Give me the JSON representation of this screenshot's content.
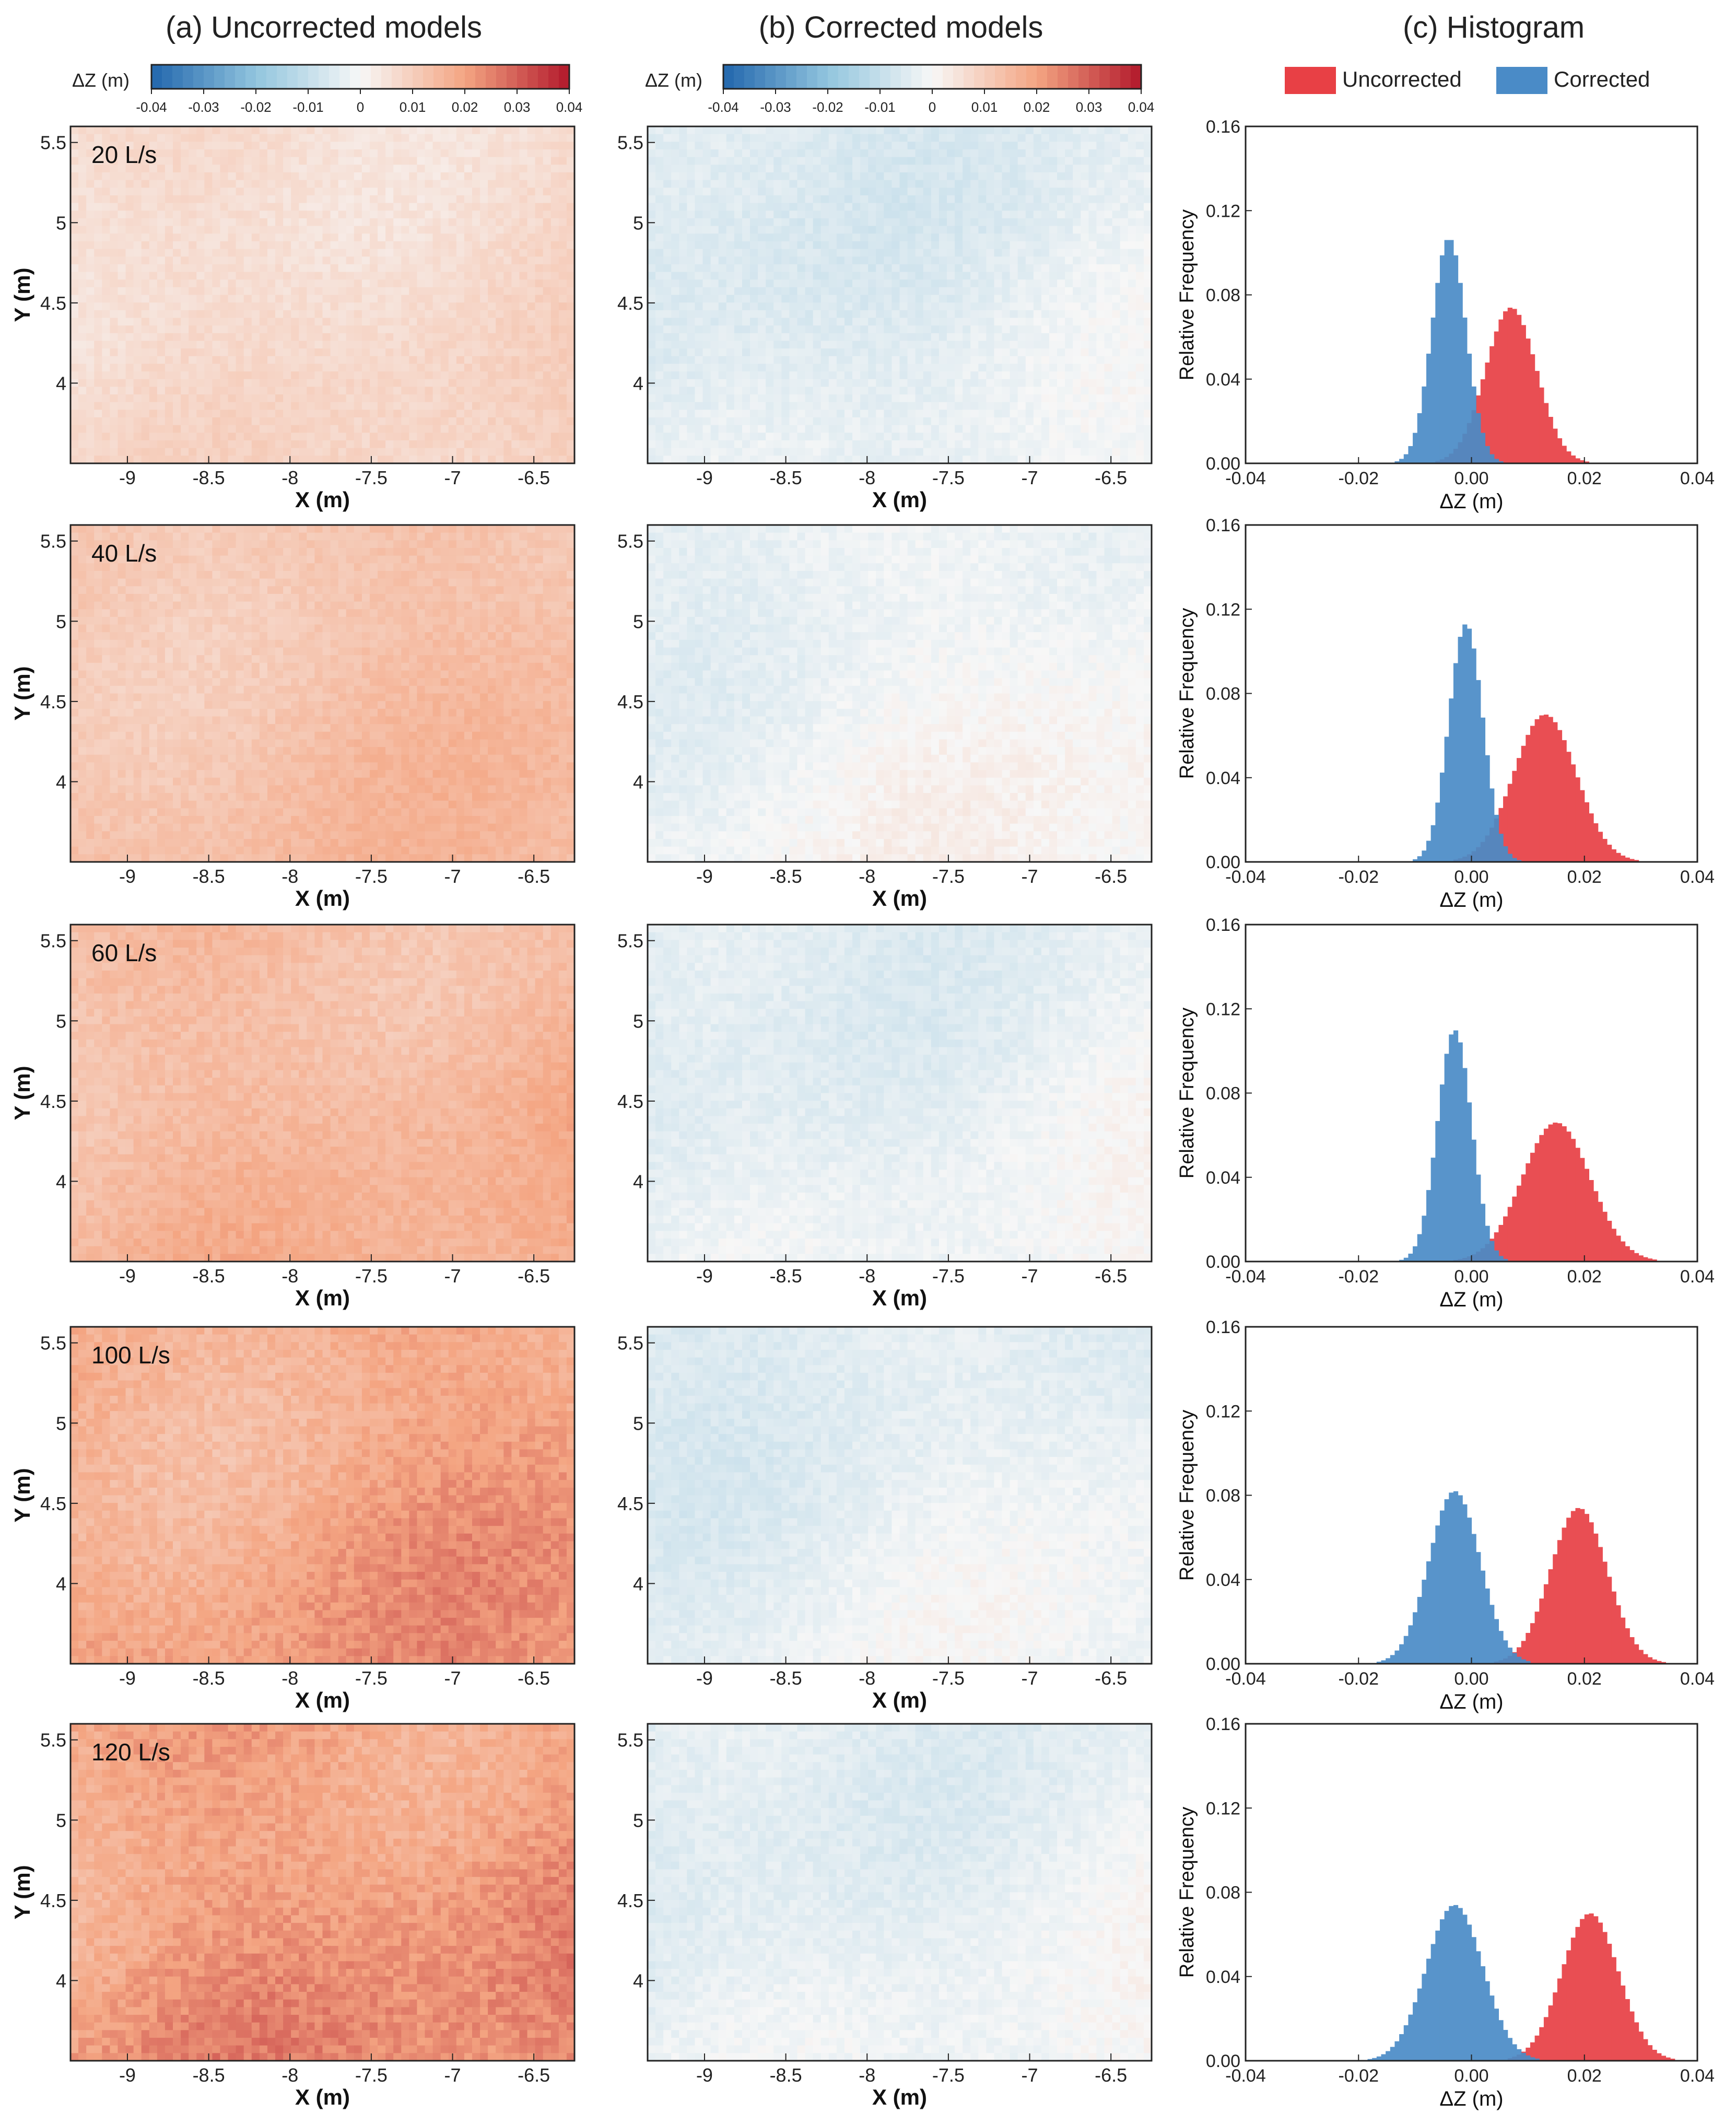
{
  "figure": {
    "column_titles": [
      "(a) Uncorrected models",
      "(b) Corrected models",
      "(c) Histogram"
    ],
    "colorbar": {
      "label": "ΔZ (m)",
      "tick_labels": [
        "-0.04",
        "-0.03",
        "-0.02",
        "-0.01",
        "0",
        "0.01",
        "0.02",
        "0.03",
        "0.04"
      ],
      "range": [
        -0.04,
        0.04
      ]
    },
    "legend": [
      {
        "label": "Uncorrected",
        "color": "#e84045"
      },
      {
        "label": "Corrected",
        "color": "#4a8bc7"
      }
    ]
  },
  "chart_data": [
    {
      "type": "heatmap",
      "panel": "a",
      "row": 1,
      "flow_label": "20 L/s",
      "xlabel": "X (m)",
      "ylabel": "Y (m)",
      "xlim": [
        -9.35,
        -6.25
      ],
      "ylim": [
        3.5,
        5.6
      ],
      "xticks": [
        "-9",
        "-8.5",
        "-8",
        "-7.5",
        "-7",
        "-6.5"
      ],
      "yticks": [
        "4",
        "4.5",
        "5",
        "5.5"
      ],
      "mean_dz": 0.007,
      "colorbar_range": [
        -0.04,
        0.04
      ]
    },
    {
      "type": "heatmap",
      "panel": "b",
      "row": 1,
      "xlabel": "X (m)",
      "ylabel": "",
      "xlim": [
        -9.35,
        -6.25
      ],
      "ylim": [
        3.5,
        5.6
      ],
      "xticks": [
        "-9",
        "-8.5",
        "-8",
        "-7.5",
        "-7",
        "-6.5"
      ],
      "yticks": [
        "4",
        "4.5",
        "5",
        "5.5"
      ],
      "mean_dz": -0.004,
      "colorbar_range": [
        -0.04,
        0.04
      ]
    },
    {
      "type": "bar",
      "panel": "c",
      "row": 1,
      "xlabel": "ΔZ (m)",
      "ylabel": "Relative Frequency",
      "xlim": [
        -0.04,
        0.04
      ],
      "ylim": [
        0,
        0.16
      ],
      "xticks": [
        "-0.04",
        "-0.02",
        "0.00",
        "0.02",
        "0.04"
      ],
      "yticks": [
        "0.00",
        "0.04",
        "0.08",
        "0.12",
        "0.16"
      ],
      "series": [
        {
          "name": "Uncorrected",
          "mean": 0.007,
          "std": 0.0045,
          "peak": 0.074
        },
        {
          "name": "Corrected",
          "mean": -0.004,
          "std": 0.003,
          "peak": 0.107
        }
      ]
    },
    {
      "type": "heatmap",
      "panel": "a",
      "row": 2,
      "flow_label": "40 L/s",
      "xlabel": "X (m)",
      "ylabel": "Y (m)",
      "xlim": [
        -9.35,
        -6.25
      ],
      "ylim": [
        3.5,
        5.6
      ],
      "xticks": [
        "-9",
        "-8.5",
        "-8",
        "-7.5",
        "-7",
        "-6.5"
      ],
      "yticks": [
        "4",
        "4.5",
        "5",
        "5.5"
      ],
      "mean_dz": 0.013,
      "colorbar_range": [
        -0.04,
        0.04
      ]
    },
    {
      "type": "heatmap",
      "panel": "b",
      "row": 2,
      "xlabel": "X (m)",
      "ylabel": "",
      "xlim": [
        -9.35,
        -6.25
      ],
      "ylim": [
        3.5,
        5.6
      ],
      "xticks": [
        "-9",
        "-8.5",
        "-8",
        "-7.5",
        "-7",
        "-6.5"
      ],
      "yticks": [
        "4",
        "4.5",
        "5",
        "5.5"
      ],
      "mean_dz": -0.001,
      "colorbar_range": [
        -0.04,
        0.04
      ]
    },
    {
      "type": "bar",
      "panel": "c",
      "row": 2,
      "xlabel": "ΔZ (m)",
      "ylabel": "Relative Frequency",
      "xlim": [
        -0.04,
        0.04
      ],
      "ylim": [
        0,
        0.16
      ],
      "xticks": [
        "-0.04",
        "-0.02",
        "0.00",
        "0.02",
        "0.04"
      ],
      "yticks": [
        "0.00",
        "0.04",
        "0.08",
        "0.12",
        "0.16"
      ],
      "series": [
        {
          "name": "Uncorrected",
          "mean": 0.013,
          "std": 0.0055,
          "peak": 0.07
        },
        {
          "name": "Corrected",
          "mean": -0.001,
          "std": 0.003,
          "peak": 0.113
        }
      ]
    },
    {
      "type": "heatmap",
      "panel": "a",
      "row": 3,
      "flow_label": "60 L/s",
      "xlabel": "X (m)",
      "ylabel": "Y (m)",
      "xlim": [
        -9.35,
        -6.25
      ],
      "ylim": [
        3.5,
        5.6
      ],
      "xticks": [
        "-9",
        "-8.5",
        "-8",
        "-7.5",
        "-7",
        "-6.5"
      ],
      "yticks": [
        "4",
        "4.5",
        "5",
        "5.5"
      ],
      "mean_dz": 0.015,
      "colorbar_range": [
        -0.04,
        0.04
      ]
    },
    {
      "type": "heatmap",
      "panel": "b",
      "row": 3,
      "xlabel": "X (m)",
      "ylabel": "",
      "xlim": [
        -9.35,
        -6.25
      ],
      "ylim": [
        3.5,
        5.6
      ],
      "xticks": [
        "-9",
        "-8.5",
        "-8",
        "-7.5",
        "-7",
        "-6.5"
      ],
      "yticks": [
        "4",
        "4.5",
        "5",
        "5.5"
      ],
      "mean_dz": -0.003,
      "colorbar_range": [
        -0.04,
        0.04
      ]
    },
    {
      "type": "bar",
      "panel": "c",
      "row": 3,
      "xlabel": "ΔZ (m)",
      "ylabel": "Relative Frequency",
      "xlim": [
        -0.04,
        0.04
      ],
      "ylim": [
        0,
        0.16
      ],
      "xticks": [
        "-0.04",
        "-0.02",
        "0.00",
        "0.02",
        "0.04"
      ],
      "yticks": [
        "0.00",
        "0.04",
        "0.08",
        "0.12",
        "0.16"
      ],
      "series": [
        {
          "name": "Uncorrected",
          "mean": 0.015,
          "std": 0.006,
          "peak": 0.066
        },
        {
          "name": "Corrected",
          "mean": -0.003,
          "std": 0.003,
          "peak": 0.11
        }
      ]
    },
    {
      "type": "heatmap",
      "panel": "a",
      "row": 4,
      "flow_label": "100 L/s",
      "xlabel": "X (m)",
      "ylabel": "Y (m)",
      "xlim": [
        -9.35,
        -6.25
      ],
      "ylim": [
        3.5,
        5.6
      ],
      "xticks": [
        "-9",
        "-8.5",
        "-8",
        "-7.5",
        "-7",
        "-6.5"
      ],
      "yticks": [
        "4",
        "4.5",
        "5",
        "5.5"
      ],
      "mean_dz": 0.019,
      "colorbar_range": [
        -0.04,
        0.04
      ]
    },
    {
      "type": "heatmap",
      "panel": "b",
      "row": 4,
      "xlabel": "X (m)",
      "ylabel": "",
      "xlim": [
        -9.35,
        -6.25
      ],
      "ylim": [
        3.5,
        5.6
      ],
      "xticks": [
        "-9",
        "-8.5",
        "-8",
        "-7.5",
        "-7",
        "-6.5"
      ],
      "yticks": [
        "4",
        "4.5",
        "5",
        "5.5"
      ],
      "mean_dz": -0.003,
      "colorbar_range": [
        -0.04,
        0.04
      ]
    },
    {
      "type": "bar",
      "panel": "c",
      "row": 4,
      "xlabel": "ΔZ (m)",
      "ylabel": "Relative Frequency",
      "xlim": [
        -0.04,
        0.04
      ],
      "ylim": [
        0,
        0.16
      ],
      "xticks": [
        "-0.04",
        "-0.02",
        "0.00",
        "0.02",
        "0.04"
      ],
      "yticks": [
        "0.00",
        "0.04",
        "0.08",
        "0.12",
        "0.16"
      ],
      "series": [
        {
          "name": "Uncorrected",
          "mean": 0.019,
          "std": 0.005,
          "peak": 0.074
        },
        {
          "name": "Corrected",
          "mean": -0.003,
          "std": 0.0045,
          "peak": 0.082
        }
      ]
    },
    {
      "type": "heatmap",
      "panel": "a",
      "row": 5,
      "flow_label": "120 L/s",
      "xlabel": "X (m)",
      "ylabel": "Y (m)",
      "xlim": [
        -9.35,
        -6.25
      ],
      "ylim": [
        3.5,
        5.6
      ],
      "xticks": [
        "-9",
        "-8.5",
        "-8",
        "-7.5",
        "-7",
        "-6.5"
      ],
      "yticks": [
        "4",
        "4.5",
        "5",
        "5.5"
      ],
      "mean_dz": 0.021,
      "colorbar_range": [
        -0.04,
        0.04
      ]
    },
    {
      "type": "heatmap",
      "panel": "b",
      "row": 5,
      "xlabel": "X (m)",
      "ylabel": "",
      "xlim": [
        -9.35,
        -6.25
      ],
      "ylim": [
        3.5,
        5.6
      ],
      "xticks": [
        "-9",
        "-8.5",
        "-8",
        "-7.5",
        "-7",
        "-6.5"
      ],
      "yticks": [
        "4",
        "4.5",
        "5",
        "5.5"
      ],
      "mean_dz": -0.003,
      "colorbar_range": [
        -0.04,
        0.04
      ]
    },
    {
      "type": "bar",
      "panel": "c",
      "row": 5,
      "xlabel": "ΔZ (m)",
      "ylabel": "Relative Frequency",
      "xlim": [
        -0.04,
        0.04
      ],
      "ylim": [
        0,
        0.16
      ],
      "xticks": [
        "-0.04",
        "-0.02",
        "0.00",
        "0.02",
        "0.04"
      ],
      "yticks": [
        "0.00",
        "0.04",
        "0.08",
        "0.12",
        "0.16"
      ],
      "series": [
        {
          "name": "Uncorrected",
          "mean": 0.021,
          "std": 0.005,
          "peak": 0.07
        },
        {
          "name": "Corrected",
          "mean": -0.003,
          "std": 0.005,
          "peak": 0.074
        }
      ]
    }
  ]
}
